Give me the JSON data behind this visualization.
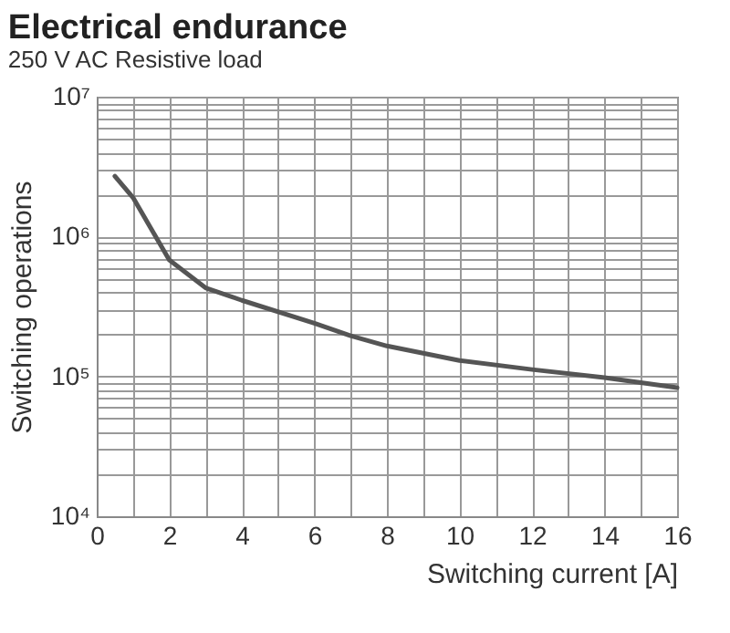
{
  "chart_data": {
    "type": "line",
    "title": "Electrical endurance",
    "subtitle": "250 V AC Resistive load",
    "xlabel": "Switching current [A]",
    "ylabel": "Switching operations",
    "x": [
      0.5,
      1,
      2,
      3,
      4,
      6,
      7,
      8,
      10,
      12,
      14,
      16
    ],
    "series": [
      {
        "color": "#555555",
        "values": [
          2700000,
          1900000,
          680000,
          430000,
          350000,
          240000,
          195000,
          165000,
          130000,
          112000,
          98000,
          83000
        ]
      }
    ],
    "log": "y",
    "grid": true,
    "marker": "none",
    "line_style": "solid",
    "legend": false,
    "xlim": [
      0,
      16
    ],
    "ylim": [
      10000,
      10000000
    ],
    "xticks": [
      0,
      {
        "value": 1,
        "label": null
      },
      2,
      {
        "value": 3,
        "label": null
      },
      4,
      {
        "value": 5,
        "label": null
      },
      6,
      {
        "value": 7,
        "label": null
      },
      8,
      {
        "value": 9,
        "label": null
      },
      10,
      {
        "value": 11,
        "label": null
      },
      12,
      {
        "value": 13,
        "label": null
      },
      14,
      {
        "value": 15,
        "label": null
      },
      16
    ],
    "yticks": [
      {
        "value": 10000,
        "label": "10⁴"
      },
      {
        "value": 20000,
        "label": null
      },
      {
        "value": 30000,
        "label": null
      },
      {
        "value": 40000,
        "label": null
      },
      {
        "value": 50000,
        "label": null
      },
      {
        "value": 60000,
        "label": null
      },
      {
        "value": 70000,
        "label": null
      },
      {
        "value": 80000,
        "label": null
      },
      {
        "value": 90000,
        "label": null
      },
      {
        "value": 100000,
        "label": "10⁵"
      },
      {
        "value": 200000,
        "label": null
      },
      {
        "value": 300000,
        "label": null
      },
      {
        "value": 400000,
        "label": null
      },
      {
        "value": 500000,
        "label": null
      },
      {
        "value": 600000,
        "label": null
      },
      {
        "value": 700000,
        "label": null
      },
      {
        "value": 800000,
        "label": null
      },
      {
        "value": 900000,
        "label": null
      },
      {
        "value": 1000000,
        "label": "10⁶"
      },
      {
        "value": 2000000,
        "label": null
      },
      {
        "value": 3000000,
        "label": null
      },
      {
        "value": 4000000,
        "label": null
      },
      {
        "value": 5000000,
        "label": null
      },
      {
        "value": 6000000,
        "label": null
      },
      {
        "value": 7000000,
        "label": null
      },
      {
        "value": 8000000,
        "label": null
      },
      {
        "value": 9000000,
        "label": null
      },
      {
        "value": 10000000,
        "label": "10⁷"
      }
    ]
  }
}
